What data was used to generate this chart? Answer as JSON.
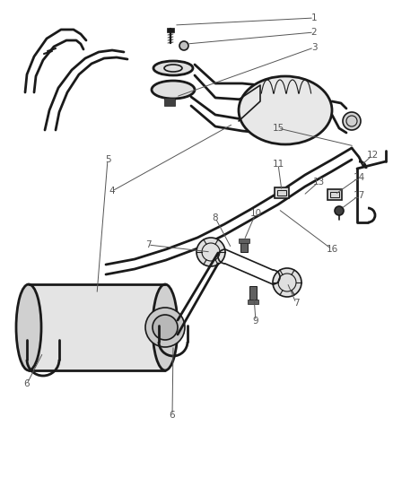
{
  "bg_color": "#ffffff",
  "line_color": "#1a1a1a",
  "label_color": "#555555",
  "fig_width": 4.38,
  "fig_height": 5.33,
  "dpi": 100,
  "label_fontsize": 7.5,
  "lw_pipe": 2.0,
  "lw_thin": 1.2,
  "lw_leader": 0.7
}
